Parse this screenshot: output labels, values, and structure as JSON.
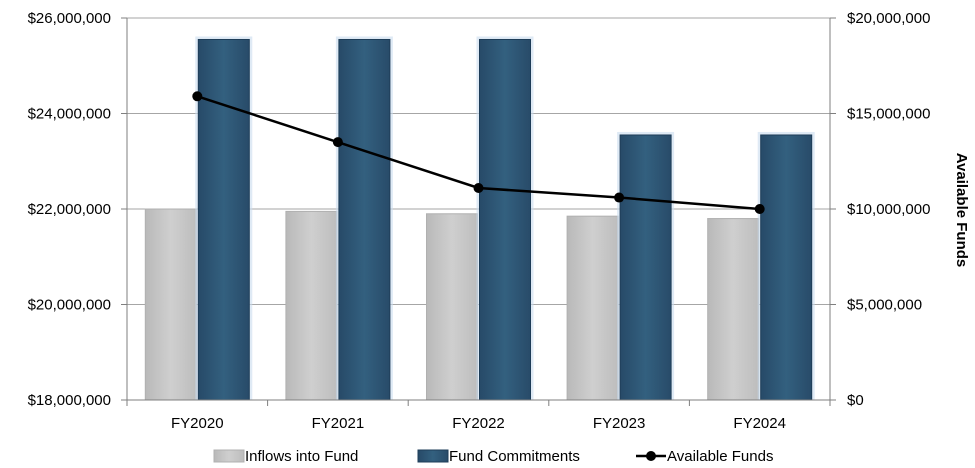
{
  "chart_data": {
    "type": "bar",
    "categories": [
      "FY2020",
      "FY2021",
      "FY2022",
      "FY2023",
      "FY2024"
    ],
    "series": [
      {
        "name": "Inflows into Fund",
        "type": "bar",
        "axis": "left",
        "color": "#c8c8c8",
        "values": [
          22000000,
          21950000,
          21900000,
          21850000,
          21800000
        ]
      },
      {
        "name": "Fund Commitments",
        "type": "bar",
        "axis": "left",
        "color": "#2e5677",
        "values": [
          25550000,
          25550000,
          25550000,
          23550000,
          23550000
        ]
      },
      {
        "name": "Available Funds",
        "type": "line",
        "axis": "right",
        "color": "#000000",
        "values": [
          15900000,
          13500000,
          11100000,
          10600000,
          10000000
        ]
      }
    ],
    "y_left": {
      "min": 18000000,
      "max": 26000000,
      "ticks": [
        18000000,
        20000000,
        22000000,
        24000000,
        26000000
      ],
      "tick_labels": [
        "$18,000,000",
        "$20,000,000",
        "$22,000,000",
        "$24,000,000",
        "$26,000,000"
      ]
    },
    "y_right": {
      "min": 0,
      "max": 20000000,
      "label": "Available Funds",
      "ticks": [
        0,
        5000000,
        10000000,
        15000000,
        20000000
      ],
      "tick_labels": [
        "$0",
        "$5,000,000",
        "$10,000,000",
        "$15,000,000",
        "$20,000,000"
      ]
    },
    "grid": true,
    "legend_position": "bottom"
  }
}
